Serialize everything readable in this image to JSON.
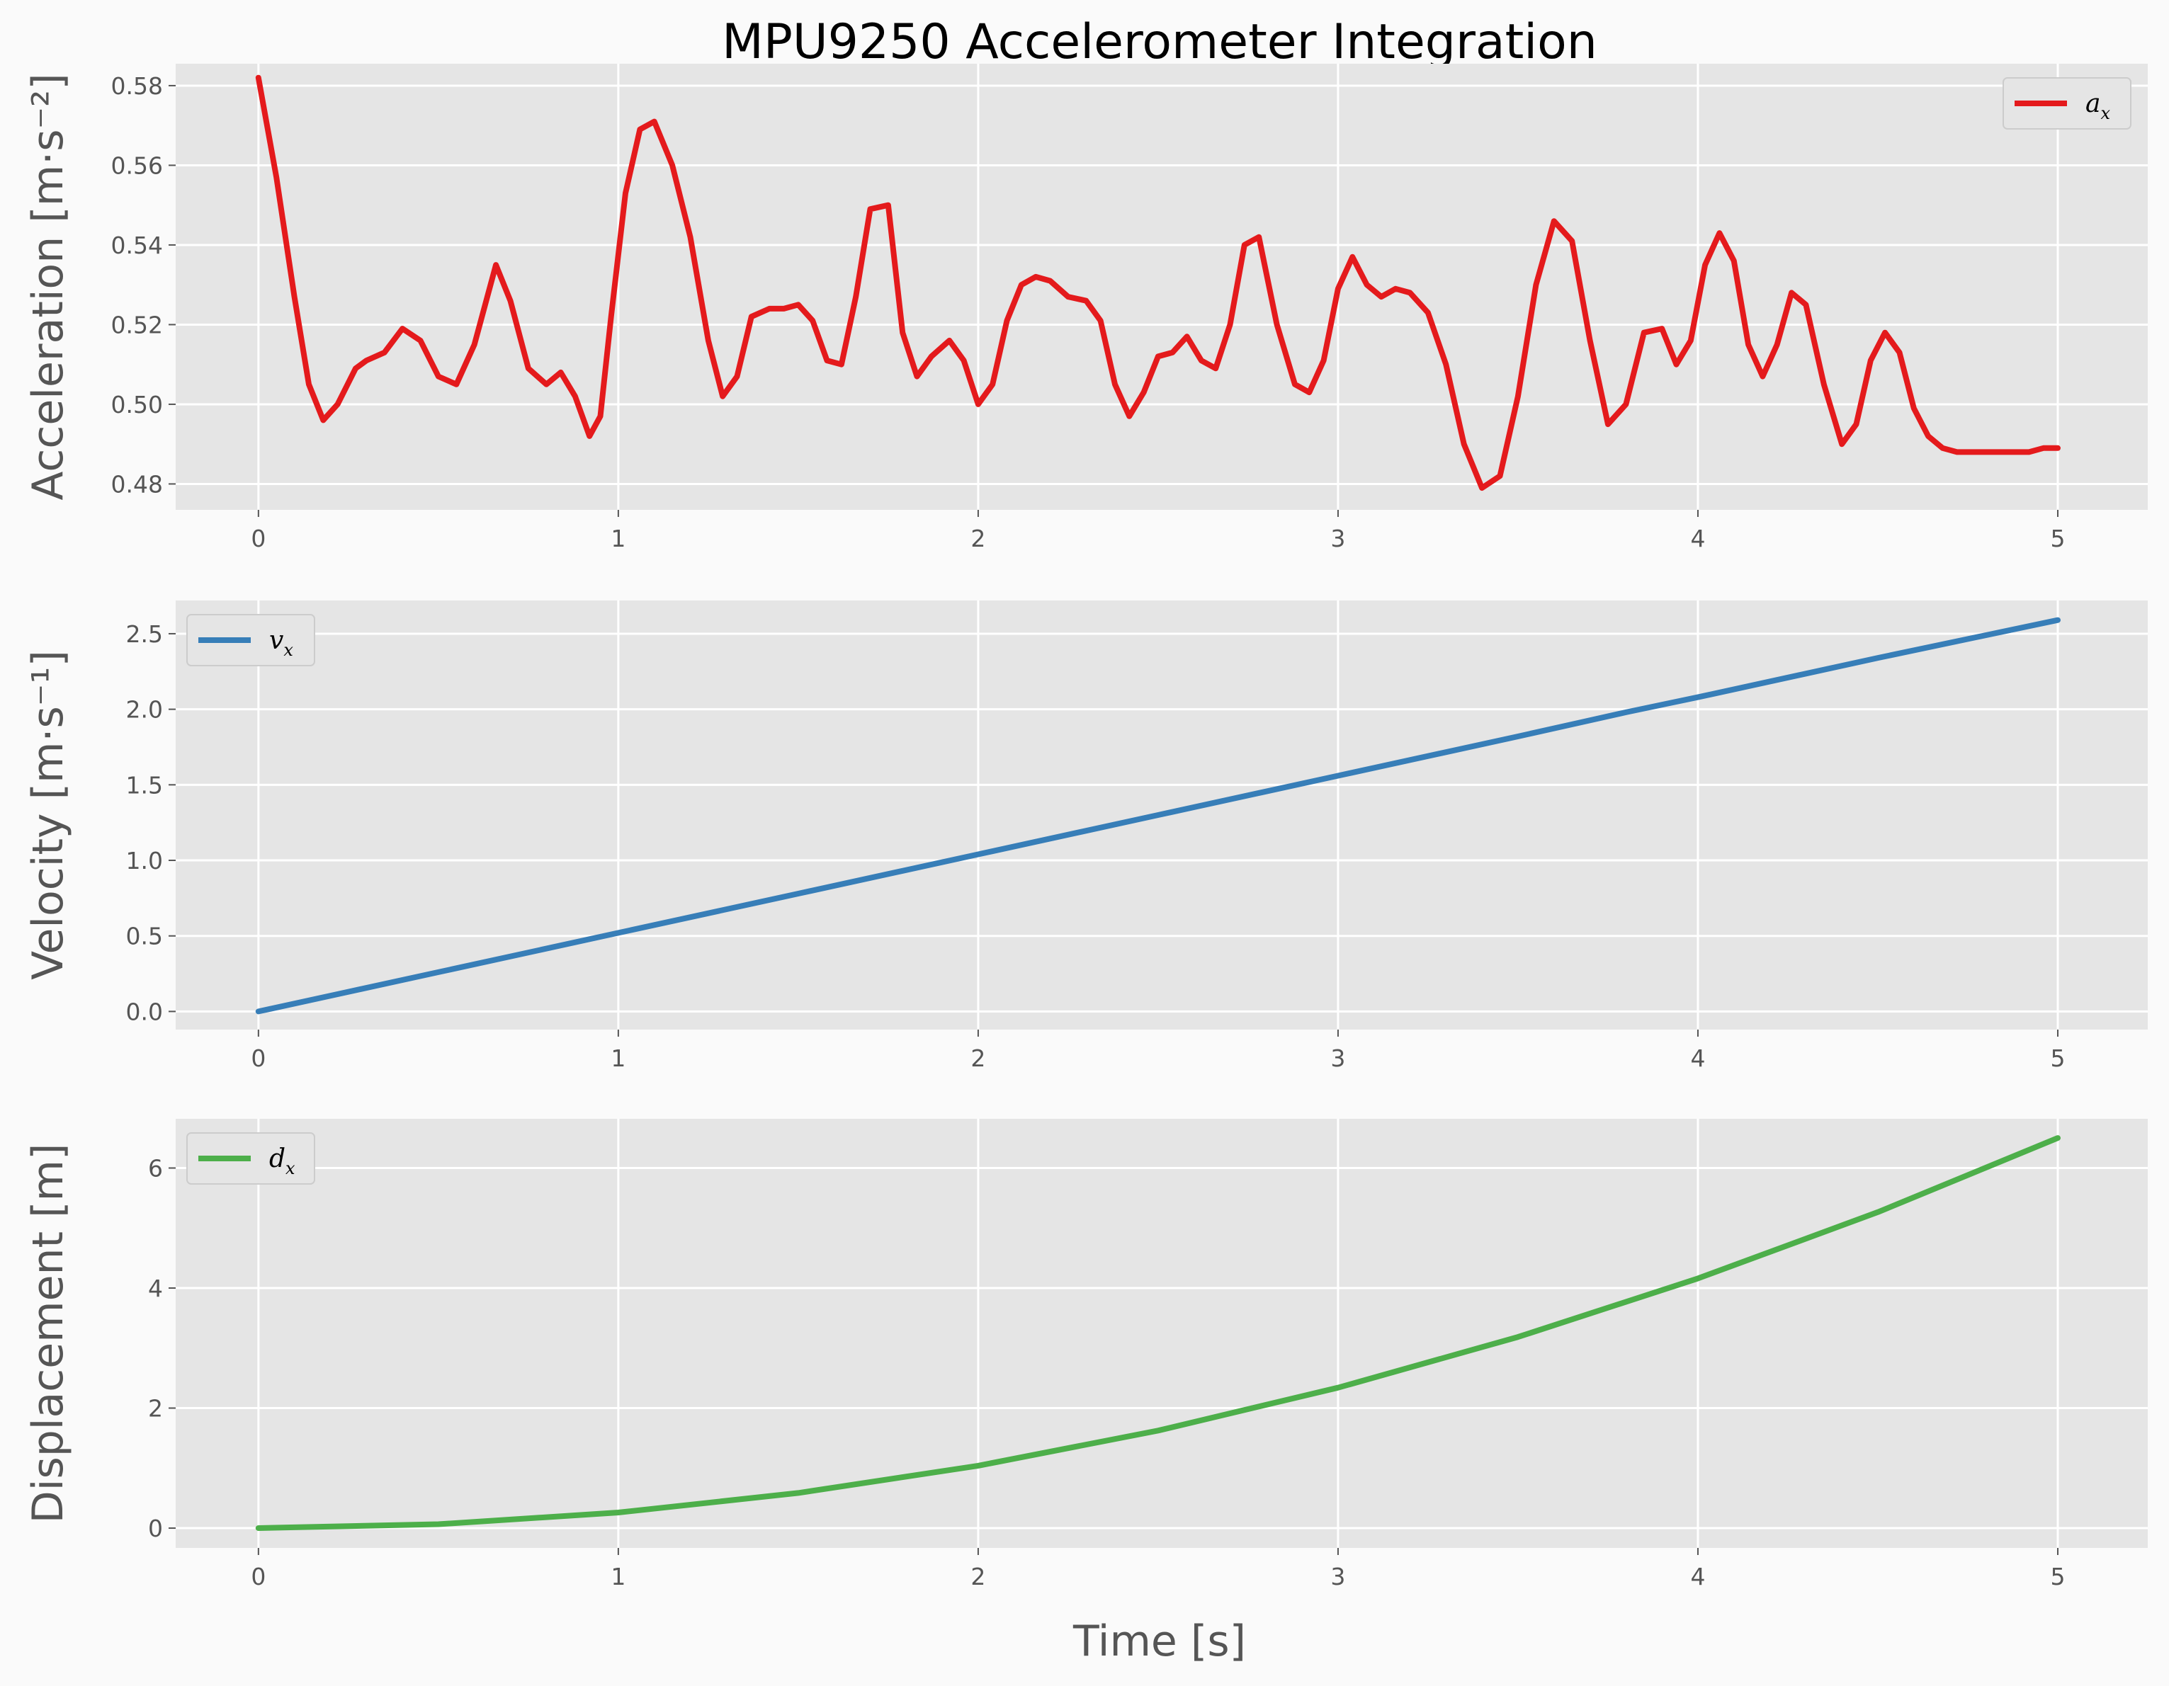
{
  "chart_data": {
    "type": "line",
    "title": "MPU9250 Accelerometer Integration",
    "xlabel": "Time [s]",
    "xlim": [
      -0.23,
      5.25
    ],
    "xticks": [
      0,
      1,
      2,
      3,
      4,
      5
    ],
    "grid": true,
    "panels": [
      {
        "id": "acceleration",
        "ylabel": "Acceleration [m·s⁻²]",
        "ylim": [
          0.4735,
          0.5855
        ],
        "yticks": [
          0.48,
          0.5,
          0.52,
          0.54,
          0.56,
          0.58
        ],
        "ytick_labels": [
          "0.48",
          "0.50",
          "0.52",
          "0.54",
          "0.56",
          "0.58"
        ],
        "legend": {
          "base": "a",
          "sub": "x",
          "position": "top-right"
        },
        "series": {
          "name": "a_x",
          "color": "#e41a1c",
          "x": [
            0,
            0.05,
            0.1,
            0.14,
            0.18,
            0.22,
            0.27,
            0.3,
            0.35,
            0.4,
            0.45,
            0.5,
            0.55,
            0.6,
            0.66,
            0.7,
            0.75,
            0.8,
            0.84,
            0.88,
            0.92,
            0.95,
            0.98,
            1.02,
            1.06,
            1.1,
            1.15,
            1.2,
            1.25,
            1.29,
            1.33,
            1.37,
            1.42,
            1.46,
            1.5,
            1.54,
            1.58,
            1.62,
            1.66,
            1.7,
            1.75,
            1.79,
            1.83,
            1.87,
            1.92,
            1.96,
            2.0,
            2.04,
            2.08,
            2.12,
            2.16,
            2.2,
            2.25,
            2.3,
            2.34,
            2.38,
            2.42,
            2.46,
            2.5,
            2.54,
            2.58,
            2.62,
            2.66,
            2.7,
            2.74,
            2.78,
            2.83,
            2.88,
            2.92,
            2.96,
            3.0,
            3.04,
            3.08,
            3.12,
            3.16,
            3.2,
            3.25,
            3.3,
            3.35,
            3.4,
            3.45,
            3.5,
            3.55,
            3.6,
            3.65,
            3.7,
            3.75,
            3.8,
            3.85,
            3.9,
            3.94,
            3.98,
            4.02,
            4.06,
            4.1,
            4.14,
            4.18,
            4.22,
            4.26,
            4.3,
            4.35,
            4.4,
            4.44,
            4.48,
            4.52,
            4.56,
            4.6,
            4.64,
            4.68,
            4.72,
            4.76,
            4.8,
            4.84,
            4.88,
            4.92,
            4.96,
            5.0
          ],
          "y": [
            0.582,
            0.557,
            0.527,
            0.505,
            0.496,
            0.5,
            0.509,
            0.511,
            0.513,
            0.519,
            0.516,
            0.507,
            0.505,
            0.515,
            0.535,
            0.526,
            0.509,
            0.505,
            0.508,
            0.502,
            0.492,
            0.497,
            0.522,
            0.553,
            0.569,
            0.571,
            0.56,
            0.542,
            0.516,
            0.502,
            0.507,
            0.522,
            0.524,
            0.524,
            0.525,
            0.521,
            0.511,
            0.51,
            0.527,
            0.549,
            0.55,
            0.518,
            0.507,
            0.512,
            0.516,
            0.511,
            0.5,
            0.505,
            0.521,
            0.53,
            0.532,
            0.531,
            0.527,
            0.526,
            0.521,
            0.505,
            0.497,
            0.503,
            0.512,
            0.513,
            0.517,
            0.511,
            0.509,
            0.52,
            0.54,
            0.542,
            0.52,
            0.505,
            0.503,
            0.511,
            0.529,
            0.537,
            0.53,
            0.527,
            0.529,
            0.528,
            0.523,
            0.51,
            0.49,
            0.479,
            0.482,
            0.502,
            0.53,
            0.546,
            0.541,
            0.516,
            0.495,
            0.5,
            0.518,
            0.519,
            0.51,
            0.516,
            0.535,
            0.543,
            0.536,
            0.515,
            0.507,
            0.515,
            0.528,
            0.525,
            0.505,
            0.49,
            0.495,
            0.511,
            0.518,
            0.513,
            0.499,
            0.492,
            0.489,
            0.488,
            0.488,
            0.488,
            0.488,
            0.488,
            0.488,
            0.489,
            0.489
          ]
        }
      },
      {
        "id": "velocity",
        "ylabel": "Velocity [m·s⁻¹]",
        "ylim": [
          -0.12,
          2.72
        ],
        "yticks": [
          0,
          0.5,
          1.0,
          1.5,
          2.0,
          2.5
        ],
        "ytick_labels": [
          "0.0",
          "0.5",
          "1.0",
          "1.5",
          "2.0",
          "2.5"
        ],
        "legend": {
          "base": "v",
          "sub": "x",
          "position": "top-left"
        },
        "series": {
          "name": "v_x",
          "color": "#377eb8",
          "x": [
            0,
            0.5,
            1.0,
            1.5,
            2.0,
            2.5,
            3.0,
            3.5,
            3.8,
            4.0,
            4.5,
            5.0
          ],
          "y": [
            0,
            0.26,
            0.52,
            0.78,
            1.04,
            1.3,
            1.56,
            1.82,
            1.98,
            2.08,
            2.34,
            2.59
          ]
        }
      },
      {
        "id": "displacement",
        "ylabel": "Displacement [m]",
        "ylim": [
          -0.33,
          6.82
        ],
        "yticks": [
          0,
          2,
          4,
          6
        ],
        "ytick_labels": [
          "0",
          "2",
          "4",
          "6"
        ],
        "legend": {
          "base": "d",
          "sub": "x",
          "position": "top-left"
        },
        "series": {
          "name": "d_x",
          "color": "#4daf4a",
          "x": [
            0,
            0.5,
            1.0,
            1.5,
            2.0,
            2.5,
            3.0,
            3.5,
            4.0,
            4.5,
            5.0
          ],
          "y": [
            0,
            0.065,
            0.26,
            0.585,
            1.04,
            1.625,
            2.34,
            3.185,
            4.16,
            5.265,
            6.5
          ]
        }
      }
    ]
  }
}
